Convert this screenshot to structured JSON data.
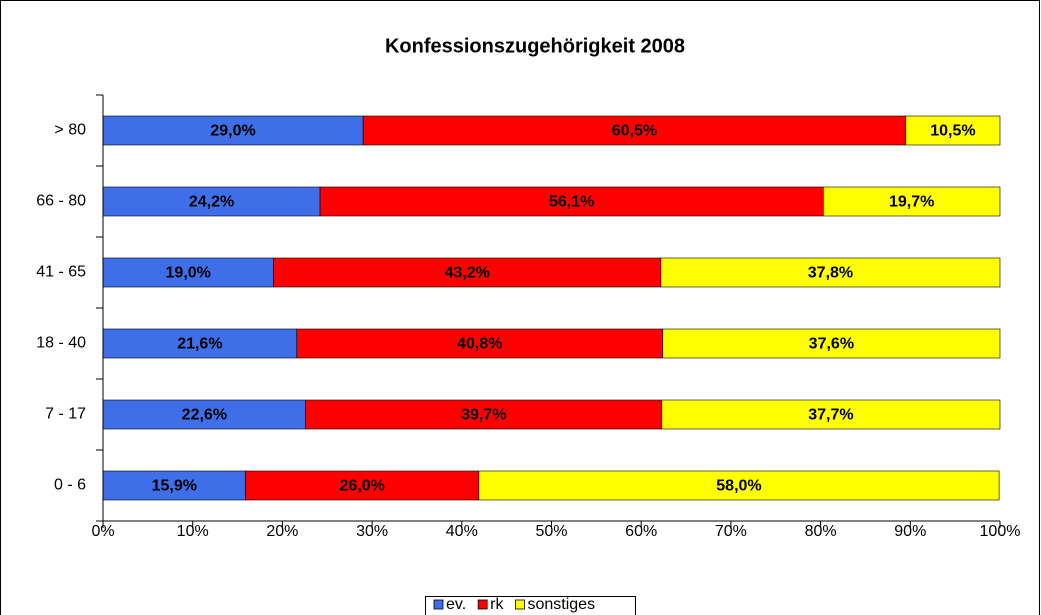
{
  "chart_data": {
    "type": "stacked_bar_horizontal",
    "title": "Konfessionszugehörigkeit 2008",
    "categories": [
      "> 80",
      "66 - 80",
      "41 - 65",
      "18 - 40",
      "7 - 17",
      "0 - 6"
    ],
    "series": [
      {
        "name": "ev.",
        "color": "#3f6fe8",
        "values": [
          29.0,
          24.2,
          19.0,
          21.6,
          22.6,
          15.9
        ],
        "value_labels": [
          "29,0%",
          "24,2%",
          "19,0%",
          "21,6%",
          "22,6%",
          "15,9%"
        ]
      },
      {
        "name": "rk",
        "color": "#ff0000",
        "values": [
          60.5,
          56.1,
          43.2,
          40.8,
          39.7,
          26.0
        ],
        "value_labels": [
          "60,5%",
          "56,1%",
          "43,2%",
          "40,8%",
          "39,7%",
          "26,0%"
        ]
      },
      {
        "name": "sonstiges",
        "color": "#ffff00",
        "values": [
          10.5,
          19.7,
          37.8,
          37.6,
          37.7,
          58.0
        ],
        "value_labels": [
          "10,5%",
          "19,7%",
          "37,8%",
          "37,6%",
          "37,7%",
          "58,0%"
        ]
      }
    ],
    "xlim": [
      0,
      100
    ],
    "xticks": [
      {
        "value": 0,
        "label": "0%"
      },
      {
        "value": 10,
        "label": "10%"
      },
      {
        "value": 20,
        "label": "20%"
      },
      {
        "value": 30,
        "label": "30%"
      },
      {
        "value": 40,
        "label": "40%"
      },
      {
        "value": 50,
        "label": "50%"
      },
      {
        "value": 60,
        "label": "60%"
      },
      {
        "value": 70,
        "label": "70%"
      },
      {
        "value": 80,
        "label": "80%"
      },
      {
        "value": 90,
        "label": "90%"
      },
      {
        "value": 100,
        "label": "100%"
      }
    ],
    "legend": "bottom",
    "grid": false
  }
}
